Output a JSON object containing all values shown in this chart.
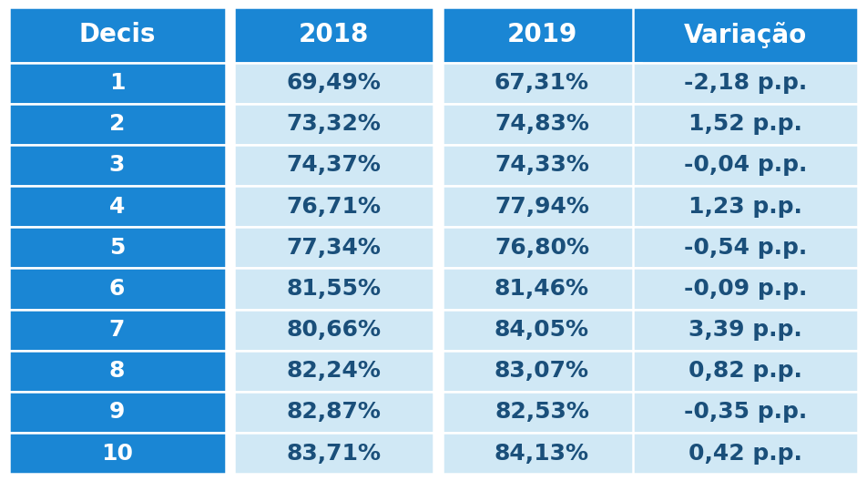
{
  "header": [
    "Decis",
    "2018",
    "2019",
    "Variação"
  ],
  "rows": [
    [
      "1",
      "69,49%",
      "67,31%",
      "-2,18 p.p."
    ],
    [
      "2",
      "73,32%",
      "74,83%",
      "1,52 p.p."
    ],
    [
      "3",
      "74,37%",
      "74,33%",
      "-0,04 p.p."
    ],
    [
      "4",
      "76,71%",
      "77,94%",
      "1,23 p.p."
    ],
    [
      "5",
      "77,34%",
      "76,80%",
      "-0,54 p.p."
    ],
    [
      "6",
      "81,55%",
      "81,46%",
      "-0,09 p.p."
    ],
    [
      "7",
      "80,66%",
      "84,05%",
      "3,39 p.p."
    ],
    [
      "8",
      "82,24%",
      "83,07%",
      "0,82 p.p."
    ],
    [
      "9",
      "82,87%",
      "82,53%",
      "-0,35 p.p."
    ],
    [
      "10",
      "83,71%",
      "84,13%",
      "0,42 p.p."
    ]
  ],
  "header_bg": "#1a86d4",
  "col0_bg": "#1a86d4",
  "data_bg": "#d0e8f5",
  "header_text_color": "#ffffff",
  "col0_text_color": "#ffffff",
  "data_text_color": "#1a4f7a",
  "header_fontsize": 20,
  "data_fontsize": 18,
  "line_color": "#ffffff",
  "outer_bg": "#ffffff"
}
